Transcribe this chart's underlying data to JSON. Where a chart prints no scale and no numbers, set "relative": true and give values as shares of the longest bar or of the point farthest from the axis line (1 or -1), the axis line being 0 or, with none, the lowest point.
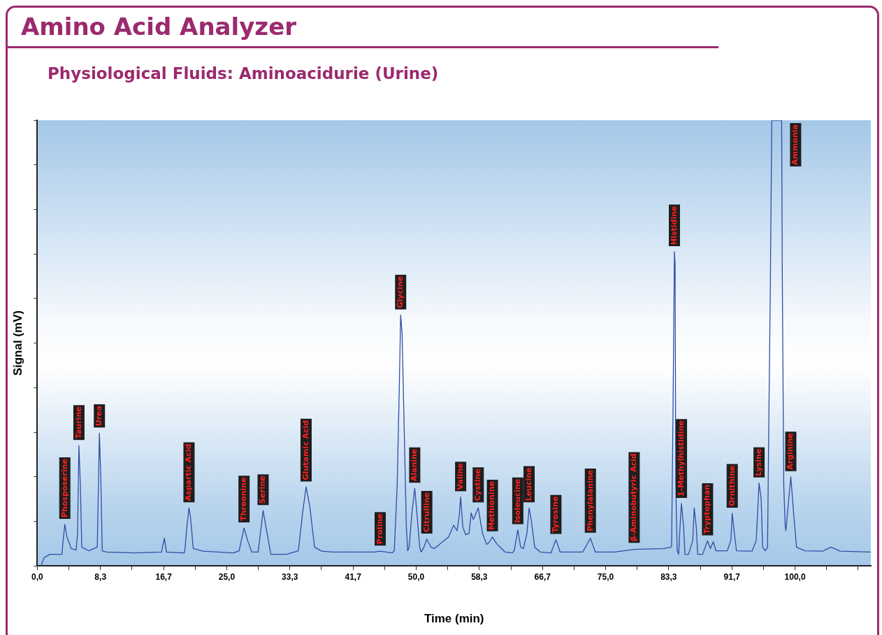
{
  "chart_data": {
    "type": "line",
    "title": "Amino Acid Analyzer",
    "subtitle": "Physiological Fluids: Aminoacidurie (Urine)",
    "xlabel": "Time (min)",
    "ylabel": "Signal (mV)",
    "relative": true,
    "grid": false,
    "legend": false,
    "marker": "none",
    "line_style": "solid",
    "xlim": [
      0,
      110
    ],
    "xticks": [
      {
        "value": 0,
        "label": "0,0"
      },
      {
        "value": 4.17,
        "label": null
      },
      {
        "value": 8.33,
        "label": "8,3"
      },
      {
        "value": 12.5,
        "label": null
      },
      {
        "value": 16.67,
        "label": "16,7"
      },
      {
        "value": 20.83,
        "label": null
      },
      {
        "value": 25,
        "label": "25,0"
      },
      {
        "value": 29.17,
        "label": null
      },
      {
        "value": 33.33,
        "label": "33,3"
      },
      {
        "value": 37.5,
        "label": null
      },
      {
        "value": 41.67,
        "label": "41,7"
      },
      {
        "value": 45.83,
        "label": null
      },
      {
        "value": 50,
        "label": "50,0"
      },
      {
        "value": 54.17,
        "label": null
      },
      {
        "value": 58.33,
        "label": "58,3"
      },
      {
        "value": 62.5,
        "label": null
      },
      {
        "value": 66.67,
        "label": "66,7"
      },
      {
        "value": 70.83,
        "label": null
      },
      {
        "value": 75,
        "label": "75,0"
      },
      {
        "value": 79.17,
        "label": null
      },
      {
        "value": 83.33,
        "label": "83,3"
      },
      {
        "value": 87.5,
        "label": null
      },
      {
        "value": 91.67,
        "label": "91,7"
      },
      {
        "value": 95.83,
        "label": null
      },
      {
        "value": 100,
        "label": "100,0"
      },
      {
        "value": 104.17,
        "label": null
      },
      {
        "value": 108.33,
        "label": null
      }
    ],
    "series": [
      {
        "color": "#2e4ea6",
        "x": [
          0.47,
          0.93,
          1.68,
          2.42,
          3.26,
          3.35,
          3.63,
          3.91,
          4.47,
          5.12,
          5.31,
          5.49,
          5.68,
          5.87,
          6.8,
          7.91,
          8.1,
          8.19,
          8.38,
          8.57,
          9.12,
          12.85,
          16.39,
          16.76,
          17.04,
          19.37,
          19.46,
          19.74,
          20.02,
          20.2,
          20.58,
          21.88,
          25.88,
          26.63,
          27.28,
          27.75,
          28.31,
          29.14,
          29.8,
          30.17,
          30.82,
          32.87,
          34.45,
          35.01,
          35.47,
          35.94,
          36.59,
          37.52,
          38.92,
          44.51,
          45.25,
          46.83,
          47.11,
          47.49,
          47.77,
          47.95,
          48.14,
          48.42,
          48.7,
          48.88,
          49.07,
          49.44,
          49.81,
          50.09,
          50.47,
          50.65,
          51.02,
          51.4,
          51.96,
          52.42,
          54.28,
          54.93,
          55.4,
          55.68,
          55.87,
          56.15,
          56.52,
          56.98,
          57.26,
          57.54,
          58.19,
          58.75,
          59.31,
          59.68,
          60.06,
          60.61,
          61.73,
          62.66,
          62.94,
          63.41,
          63.78,
          64.15,
          64.62,
          64.9,
          65.18,
          65.64,
          66.39,
          67.78,
          68.44,
          69.0,
          71.97,
          72.99,
          73.65,
          76.16,
          78.77,
          82.68,
          83.61,
          83.71,
          83.89,
          84.08,
          84.17,
          84.26,
          84.45,
          84.64,
          84.82,
          85.01,
          85.29,
          85.47,
          85.94,
          86.5,
          86.69,
          86.96,
          87.15,
          87.8,
          88.45,
          88.83,
          89.2,
          89.57,
          91.06,
          91.53,
          91.71,
          91.99,
          92.27,
          94.32,
          94.88,
          95.25,
          95.53,
          95.72,
          96.09,
          96.37,
          96.55,
          96.74,
          96.93,
          98.23,
          98.32,
          98.51,
          98.7,
          98.79,
          99.44,
          99.81,
          100.19,
          101.3,
          103.63,
          104.75,
          105.96,
          110
        ],
        "values": [
          0,
          0.019,
          0.026,
          0.026,
          0.026,
          0.048,
          0.093,
          0.065,
          0.039,
          0.036,
          0.073,
          0.27,
          0.181,
          0.042,
          0.034,
          0.042,
          0.212,
          0.298,
          0.197,
          0.034,
          0.031,
          0.029,
          0.031,
          0.062,
          0.031,
          0.029,
          0.034,
          0.088,
          0.13,
          0.112,
          0.039,
          0.033,
          0.029,
          0.034,
          0.085,
          0.057,
          0.031,
          0.031,
          0.124,
          0.088,
          0.026,
          0.026,
          0.034,
          0.119,
          0.177,
          0.136,
          0.042,
          0.033,
          0.031,
          0.031,
          0.033,
          0.029,
          0.034,
          0.181,
          0.398,
          0.563,
          0.522,
          0.305,
          0.088,
          0.034,
          0.042,
          0.119,
          0.174,
          0.119,
          0.042,
          0.031,
          0.042,
          0.06,
          0.042,
          0.039,
          0.065,
          0.091,
          0.079,
          0.112,
          0.155,
          0.088,
          0.07,
          0.073,
          0.119,
          0.104,
          0.13,
          0.073,
          0.048,
          0.054,
          0.065,
          0.05,
          0.031,
          0.029,
          0.034,
          0.081,
          0.042,
          0.039,
          0.073,
          0.13,
          0.104,
          0.042,
          0.031,
          0.029,
          0.059,
          0.031,
          0.031,
          0.062,
          0.031,
          0.031,
          0.037,
          0.039,
          0.042,
          0.045,
          0.336,
          0.705,
          0.678,
          0.181,
          0.034,
          0.026,
          0.088,
          0.14,
          0.088,
          0.026,
          0.026,
          0.057,
          0.13,
          0.088,
          0.026,
          0.026,
          0.056,
          0.039,
          0.054,
          0.034,
          0.034,
          0.057,
          0.118,
          0.073,
          0.034,
          0.033,
          0.057,
          0.186,
          0.15,
          0.042,
          0.034,
          0.042,
          0.336,
          0.631,
          1,
          1,
          0.647,
          0.181,
          0.091,
          0.079,
          0.2,
          0.119,
          0.042,
          0.034,
          0.033,
          0.042,
          0.033,
          0.031
        ]
      }
    ],
    "annotations": [
      {
        "text": "Phosposerine",
        "x": 3.63,
        "y": 0.093
      },
      {
        "text": "Taurine",
        "x": 5.49,
        "y": 0.27
      },
      {
        "text": "Urea",
        "x": 8.19,
        "y": 0.298
      },
      {
        "text": "Aspartic Acid",
        "x": 20.02,
        "y": 0.13
      },
      {
        "text": "Threonine",
        "x": 27.28,
        "y": 0.085
      },
      {
        "text": "Serine",
        "x": 29.8,
        "y": 0.124
      },
      {
        "text": "Glutamic Acid",
        "x": 35.47,
        "y": 0.177
      },
      {
        "text": "Proline",
        "x": 45.25,
        "y": 0.033
      },
      {
        "text": "Glycine",
        "x": 47.95,
        "y": 0.563
      },
      {
        "text": "Alanine",
        "x": 49.81,
        "y": 0.174
      },
      {
        "text": "Citrulline",
        "x": 51.4,
        "y": 0.06
      },
      {
        "text": "Valine",
        "x": 55.87,
        "y": 0.155
      },
      {
        "text": "Cystine",
        "x": 58.19,
        "y": 0.13
      },
      {
        "text": "Methionine",
        "x": 60.06,
        "y": 0.065
      },
      {
        "text": "Isoleucine",
        "x": 63.41,
        "y": 0.081
      },
      {
        "text": "Leucine",
        "x": 64.9,
        "y": 0.13
      },
      {
        "text": "Tyrosine",
        "x": 68.44,
        "y": 0.059
      },
      {
        "text": "Phenylalanine",
        "x": 72.99,
        "y": 0.062
      },
      {
        "text": "β-Aminobutyric Acid",
        "x": 78.77,
        "y": 0.039
      },
      {
        "text": "Histidine",
        "x": 84.08,
        "y": 0.705
      },
      {
        "text": "1-Methylhistidine",
        "x": 85.01,
        "y": 0.14
      },
      {
        "text": "Tryptophan",
        "x": 88.45,
        "y": 0.056
      },
      {
        "text": "Ornithine",
        "x": 91.71,
        "y": 0.118
      },
      {
        "text": "Lysine",
        "x": 95.25,
        "y": 0.186
      },
      {
        "text": "Arginine",
        "x": 99.44,
        "y": 0.2
      },
      {
        "text": "Ammonia",
        "x": 98.23,
        "y": 1
      }
    ]
  }
}
